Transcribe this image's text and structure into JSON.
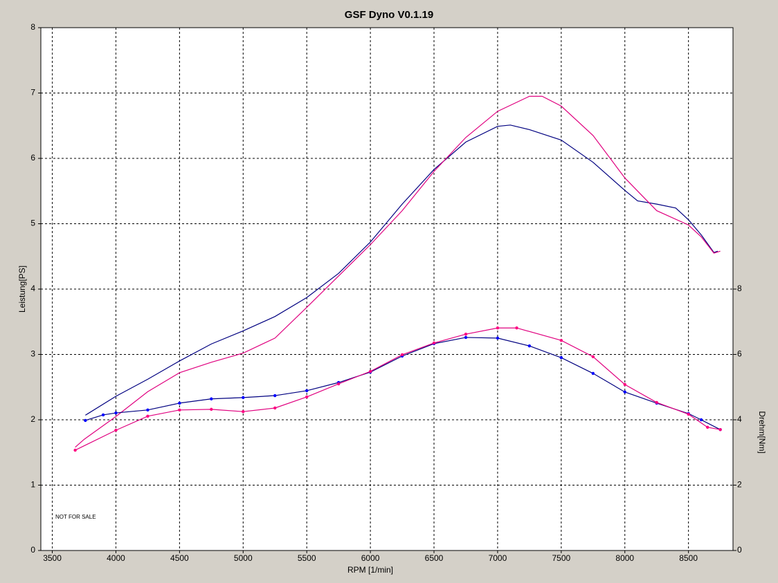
{
  "chart_data": {
    "type": "line",
    "title": "GSF Dyno V0.1.19",
    "x_label": "RPM [1/min]",
    "y_label": "Leistung[PS]",
    "y2_label": "Drehm[Nm]",
    "annotation": "NOT FOR SALE",
    "xlim": [
      3410,
      8850
    ],
    "xticks": [
      3500,
      4000,
      4500,
      5000,
      5500,
      6000,
      6500,
      7000,
      7500,
      8000,
      8500
    ],
    "ylim": [
      0,
      8
    ],
    "yticks": [
      0,
      1,
      2,
      3,
      4,
      5,
      6,
      7,
      8
    ],
    "y2lim": [
      0,
      16
    ],
    "y2ticks": [
      0,
      2,
      4,
      6,
      8
    ],
    "grid": true,
    "series": [
      {
        "color": "#000080",
        "markers": false,
        "x": [
          3760,
          4000,
          4250,
          4500,
          4750,
          5000,
          5250,
          5500,
          5750,
          6000,
          6250,
          6500,
          6750,
          7000,
          7100,
          7250,
          7500,
          7750,
          8000,
          8100,
          8250,
          8400,
          8500,
          8600,
          8700,
          8730
        ],
        "values": [
          2.07,
          2.36,
          2.62,
          2.9,
          3.16,
          3.36,
          3.58,
          3.87,
          4.24,
          4.72,
          5.3,
          5.83,
          6.25,
          6.49,
          6.51,
          6.44,
          6.28,
          5.94,
          5.51,
          5.35,
          5.3,
          5.24,
          5.06,
          4.83,
          4.56,
          4.58
        ]
      },
      {
        "color": "#e0007f",
        "markers": false,
        "x": [
          3680,
          3750,
          4000,
          4250,
          4500,
          4750,
          5000,
          5250,
          5500,
          5750,
          6000,
          6250,
          6500,
          6750,
          7000,
          7250,
          7350,
          7500,
          7750,
          8000,
          8250,
          8500,
          8600,
          8700,
          8750
        ],
        "values": [
          1.58,
          1.7,
          2.05,
          2.43,
          2.72,
          2.88,
          3.02,
          3.25,
          3.72,
          4.2,
          4.68,
          5.2,
          5.8,
          6.32,
          6.72,
          6.95,
          6.95,
          6.8,
          6.35,
          5.7,
          5.2,
          4.98,
          4.8,
          4.55,
          4.58
        ]
      },
      {
        "color": "#000080",
        "marker_color": "#0000ff",
        "markers": true,
        "axis": "y2",
        "x": [
          3760,
          3900,
          4000,
          4250,
          4500,
          4750,
          5000,
          5250,
          5500,
          5750,
          6000,
          6250,
          6500,
          6750,
          7000,
          7250,
          7500,
          7750,
          8000,
          8250,
          8500,
          8600,
          8750
        ],
        "values": [
          3.98,
          4.15,
          4.21,
          4.3,
          4.51,
          4.64,
          4.68,
          4.74,
          4.89,
          5.14,
          5.46,
          5.95,
          6.33,
          6.52,
          6.5,
          6.26,
          5.9,
          5.42,
          4.85,
          4.51,
          4.19,
          4.0,
          3.7
        ]
      },
      {
        "color": "#e0007f",
        "marker_color": "#ff0080",
        "markers": true,
        "axis": "y2",
        "x": [
          3680,
          4000,
          4250,
          4500,
          4750,
          5000,
          5250,
          5500,
          5750,
          6000,
          6250,
          6500,
          6750,
          7000,
          7150,
          7500,
          7750,
          8000,
          8250,
          8500,
          8650,
          8750
        ],
        "values": [
          3.07,
          3.68,
          4.11,
          4.3,
          4.32,
          4.25,
          4.36,
          4.7,
          5.1,
          5.48,
          5.99,
          6.35,
          6.62,
          6.81,
          6.81,
          6.43,
          5.93,
          5.08,
          4.53,
          4.17,
          3.77,
          3.7
        ]
      }
    ]
  }
}
